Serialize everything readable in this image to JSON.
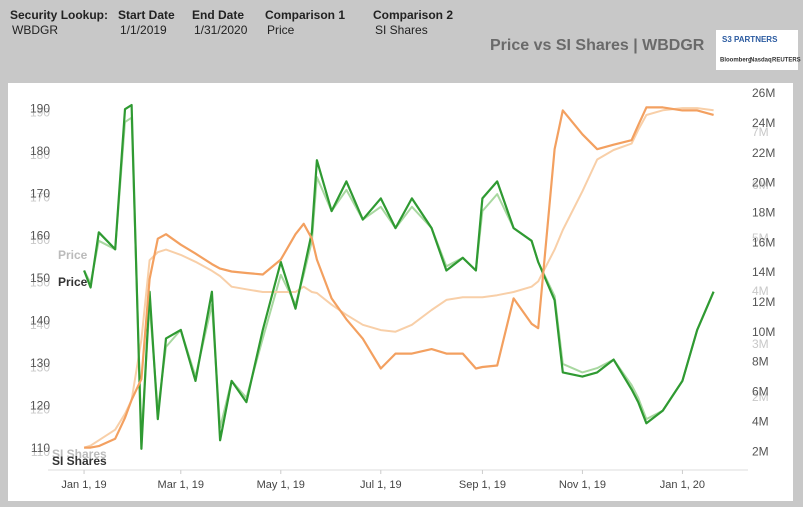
{
  "header": {
    "fields": [
      {
        "label": "Security Lookup:",
        "value": "WBDGR"
      },
      {
        "label": "Start Date",
        "value": "1/1/2019"
      },
      {
        "label": "End Date",
        "value": "1/31/2020"
      },
      {
        "label": "Comparison 1",
        "value": "Price"
      },
      {
        "label": "Comparison 2",
        "value": "SI Shares"
      }
    ],
    "title": "Price vs SI Shares | WBDGR",
    "logo": {
      "name": "S3 PARTNERS",
      "sources": [
        "Bloomberg",
        "Nasdaq",
        "REUTERS"
      ]
    }
  },
  "chart_data": [
    {
      "type": "line",
      "x": [
        "2019-01-01",
        "2019-01-05",
        "2019-01-10",
        "2019-01-20",
        "2019-01-26",
        "2019-01-30",
        "2019-02-05",
        "2019-02-10",
        "2019-02-15",
        "2019-02-20",
        "2019-03-01",
        "2019-03-10",
        "2019-03-20",
        "2019-03-25",
        "2019-04-01",
        "2019-04-10",
        "2019-04-20",
        "2019-05-01",
        "2019-05-10",
        "2019-05-15",
        "2019-05-20",
        "2019-05-23",
        "2019-06-01",
        "2019-06-10",
        "2019-06-20",
        "2019-07-01",
        "2019-07-10",
        "2019-07-20",
        "2019-08-01",
        "2019-08-10",
        "2019-08-20",
        "2019-08-28",
        "2019-09-01",
        "2019-09-10",
        "2019-09-20",
        "2019-10-01",
        "2019-10-05",
        "2019-10-15",
        "2019-10-20",
        "2019-11-01",
        "2019-11-10",
        "2019-11-20",
        "2019-12-01",
        "2019-12-05",
        "2019-12-10",
        "2019-12-20",
        "2020-01-01",
        "2020-01-10",
        "2020-01-20"
      ],
      "xlim": [
        "2018-12-10",
        "2020-02-10"
      ],
      "ylim": [
        106,
        196
      ],
      "yticks": [
        110,
        120,
        130,
        140,
        150,
        160,
        170,
        180,
        190
      ],
      "y2lim": [
        640000,
        7850000
      ],
      "y2ticks": [
        {
          "value": 2000000,
          "label": "2M"
        },
        {
          "value": 3000000,
          "label": "3M"
        },
        {
          "value": 4000000,
          "label": "4M"
        },
        {
          "value": 5000000,
          "label": "5M"
        },
        {
          "value": 6000000,
          "label": "6M"
        },
        {
          "value": 7000000,
          "label": "7M"
        }
      ],
      "series": [
        {
          "name": "Price",
          "color": "#a8d8a0",
          "values": [
            153,
            150,
            160,
            158,
            188,
            189,
            114,
            145,
            120,
            135,
            139,
            128,
            145,
            116,
            127,
            123,
            137,
            152,
            145,
            152,
            160,
            175,
            167,
            172,
            165,
            168,
            163,
            168,
            163,
            154,
            156,
            153,
            167,
            171,
            163,
            160,
            155,
            147,
            131,
            129,
            130,
            132,
            126,
            123,
            118,
            120,
            127,
            139,
            148
          ]
        },
        {
          "name": "SI Shares",
          "color": "#f8cfa8",
          "axis": "y2",
          "values": [
            1060000,
            1100000,
            1200000,
            1400000,
            1700000,
            1960000,
            3100000,
            4600000,
            4750000,
            4800000,
            4700000,
            4570000,
            4400000,
            4300000,
            4100000,
            4050000,
            4000000,
            4000000,
            4000000,
            4100000,
            4000000,
            3980000,
            3760000,
            3570000,
            3380000,
            3280000,
            3250000,
            3380000,
            3660000,
            3850000,
            3900000,
            3900000,
            3900000,
            3940000,
            4000000,
            4100000,
            4200000,
            4800000,
            5170000,
            5900000,
            6500000,
            6680000,
            6800000,
            7060000,
            7340000,
            7430000,
            7470000,
            7470000,
            7430000
          ]
        }
      ]
    },
    {
      "type": "line",
      "x": [
        "2019-01-01",
        "2019-01-05",
        "2019-01-10",
        "2019-01-20",
        "2019-01-26",
        "2019-01-30",
        "2019-02-05",
        "2019-02-10",
        "2019-02-15",
        "2019-02-20",
        "2019-03-01",
        "2019-03-10",
        "2019-03-20",
        "2019-03-25",
        "2019-04-01",
        "2019-04-10",
        "2019-04-20",
        "2019-05-01",
        "2019-05-10",
        "2019-05-15",
        "2019-05-20",
        "2019-05-23",
        "2019-06-01",
        "2019-06-10",
        "2019-06-20",
        "2019-07-01",
        "2019-07-10",
        "2019-07-20",
        "2019-08-01",
        "2019-08-10",
        "2019-08-20",
        "2019-08-28",
        "2019-09-01",
        "2019-09-10",
        "2019-09-20",
        "2019-10-01",
        "2019-10-05",
        "2019-10-15",
        "2019-10-20",
        "2019-11-01",
        "2019-11-10",
        "2019-11-20",
        "2019-12-01",
        "2019-12-05",
        "2019-12-10",
        "2019-12-20",
        "2020-01-01",
        "2020-01-10",
        "2020-01-20"
      ],
      "xlim": [
        "2018-12-10",
        "2020-02-10"
      ],
      "xticks": [
        {
          "value": "2019-01-01",
          "label": "Jan 1, 19"
        },
        {
          "value": "2019-03-01",
          "label": "Mar 1, 19"
        },
        {
          "value": "2019-05-01",
          "label": "May 1, 19"
        },
        {
          "value": "2019-07-01",
          "label": "Jul 1, 19"
        },
        {
          "value": "2019-09-01",
          "label": "Sep 1, 19"
        },
        {
          "value": "2019-11-01",
          "label": "Nov 1, 19"
        },
        {
          "value": "2020-01-01",
          "label": "Jan 1, 20"
        }
      ],
      "ylim": [
        105,
        195
      ],
      "yticks": [
        110,
        120,
        130,
        140,
        150,
        160,
        170,
        180,
        190
      ],
      "y2lim": [
        800000,
        26400000
      ],
      "y2ticks": [
        {
          "value": 2000000,
          "label": "2M"
        },
        {
          "value": 4000000,
          "label": "4M"
        },
        {
          "value": 6000000,
          "label": "6M"
        },
        {
          "value": 8000000,
          "label": "8M"
        },
        {
          "value": 10000000,
          "label": "10M"
        },
        {
          "value": 12000000,
          "label": "12M"
        },
        {
          "value": 14000000,
          "label": "14M"
        },
        {
          "value": 16000000,
          "label": "16M"
        },
        {
          "value": 18000000,
          "label": "18M"
        },
        {
          "value": 20000000,
          "label": "20M"
        },
        {
          "value": 22000000,
          "label": "22M"
        },
        {
          "value": 24000000,
          "label": "24M"
        },
        {
          "value": 26000000,
          "label": "26M"
        }
      ],
      "series": [
        {
          "name": "Price",
          "color": "#2f9a32",
          "values": [
            152,
            148,
            161,
            157,
            190,
            191,
            110,
            147,
            117,
            136,
            138,
            126,
            147,
            112,
            126,
            121,
            138,
            154,
            143,
            152,
            161,
            178,
            166,
            173,
            164,
            169,
            162,
            169,
            162,
            152,
            155,
            152,
            169,
            173,
            162,
            159,
            154,
            145,
            128,
            127,
            128,
            131,
            124,
            121,
            116,
            119,
            126,
            138,
            147
          ]
        },
        {
          "name": "SI Shares",
          "color": "#f3a060",
          "axis": "y2",
          "values": [
            2300000,
            2300000,
            2400000,
            2900000,
            4300000,
            5500000,
            6900000,
            13600000,
            16300000,
            16600000,
            15900000,
            15300000,
            14600000,
            14300000,
            14100000,
            14000000,
            13900000,
            14900000,
            16600000,
            17300000,
            16300000,
            14900000,
            12300000,
            10900000,
            9600000,
            7600000,
            8600000,
            8600000,
            8900000,
            8600000,
            8600000,
            7600000,
            7700000,
            7800000,
            12300000,
            10600000,
            10300000,
            22300000,
            24900000,
            23300000,
            22300000,
            22600000,
            22900000,
            23900000,
            25100000,
            25100000,
            24900000,
            24900000,
            24600000
          ]
        }
      ]
    }
  ]
}
